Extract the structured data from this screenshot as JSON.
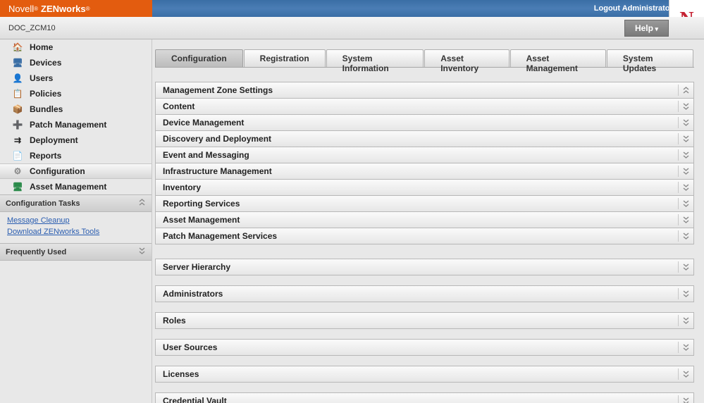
{
  "brand": {
    "novell": "Novell",
    "zenworks": "ZENworks",
    "reg": "®"
  },
  "banner": {
    "logout": "Logout Administrator",
    "n": "N"
  },
  "breadcrumb": "DOC_ZCM10",
  "help_label": "Help",
  "nav": [
    {
      "label": "Home",
      "icon": "🏠",
      "color": "#c98a2a"
    },
    {
      "label": "Devices",
      "icon": "🖥",
      "color": "#3a6ea5"
    },
    {
      "label": "Users",
      "icon": "👤",
      "color": "#2a5db0"
    },
    {
      "label": "Policies",
      "icon": "📋",
      "color": "#c0504d"
    },
    {
      "label": "Bundles",
      "icon": "📦",
      "color": "#e08a2a"
    },
    {
      "label": "Patch Management",
      "icon": "➕",
      "color": "#c0504d"
    },
    {
      "label": "Deployment",
      "icon": "⇉",
      "color": "#222"
    },
    {
      "label": "Reports",
      "icon": "📄",
      "color": "#555"
    },
    {
      "label": "Configuration",
      "icon": "⚙",
      "color": "#888",
      "active": true
    },
    {
      "label": "Asset Management",
      "icon": "🖥",
      "color": "#2a8a4a"
    }
  ],
  "config_tasks_header": "Configuration Tasks",
  "config_tasks": [
    {
      "label": "Message Cleanup"
    },
    {
      "label": "Download ZENworks Tools"
    }
  ],
  "freq_used_header": "Frequently Used",
  "tabs": [
    {
      "label": "Configuration",
      "active": true
    },
    {
      "label": "Registration"
    },
    {
      "label": "System Information"
    },
    {
      "label": "Asset Inventory"
    },
    {
      "label": "Asset Management"
    },
    {
      "label": "System Updates"
    }
  ],
  "zone_settings": [
    {
      "label": "Management Zone Settings",
      "expanded": true
    },
    {
      "label": "Content"
    },
    {
      "label": "Device Management"
    },
    {
      "label": "Discovery and Deployment"
    },
    {
      "label": "Event and Messaging"
    },
    {
      "label": "Infrastructure Management"
    },
    {
      "label": "Inventory"
    },
    {
      "label": "Reporting Services"
    },
    {
      "label": "Asset Management"
    },
    {
      "label": "Patch Management Services"
    }
  ],
  "panels": [
    {
      "label": "Server Hierarchy"
    },
    {
      "label": "Administrators"
    },
    {
      "label": "Roles"
    },
    {
      "label": "User Sources"
    },
    {
      "label": "Licenses"
    },
    {
      "label": "Credential Vault"
    }
  ],
  "colors": {
    "brand_bg": "#e35c0f",
    "banner_bg": "#3a6ea5",
    "n_color": "#c52233",
    "link": "#2a5db0"
  }
}
